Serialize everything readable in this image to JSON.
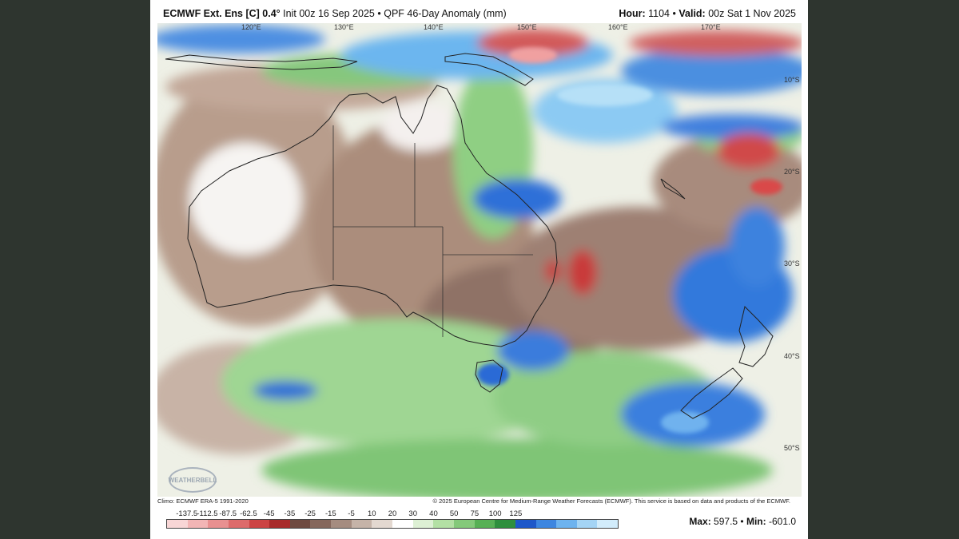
{
  "header": {
    "model_bold": "ECMWF Ext. Ens [C] 0.4°",
    "init_text": "Init 00z 16 Sep 2025",
    "product_text": "QPF 46-Day Anomaly (mm)",
    "hour_label": "Hour:",
    "hour_value": "1104",
    "valid_label": "Valid:",
    "valid_value": "00z Sat 1 Nov 2025",
    "separator": "•"
  },
  "map": {
    "lon_labels": [
      "120°E",
      "130°E",
      "140°E",
      "150°E",
      "160°E",
      "170°E"
    ],
    "lat_labels": [
      "10°S",
      "20°S",
      "30°S",
      "40°S",
      "50°S"
    ],
    "logo_text": "WEATHERBELL"
  },
  "footer": {
    "climo": "Climo: ECMWF ERA-5 1991-2020",
    "copyright": "© 2025 European Centre for Medium-Range Weather Forecasts (ECMWF). This service is based on data and products of the ECMWF.",
    "max_label": "Max:",
    "max_value": "597.5",
    "min_label": "Min:",
    "min_value": "-601.0"
  },
  "colorbar": {
    "ticks": [
      "-137.5",
      "-112.5",
      "-87.5",
      "-62.5",
      "-45",
      "-35",
      "-25",
      "-15",
      "-5",
      "10",
      "20",
      "30",
      "40",
      "50",
      "75",
      "100",
      "125"
    ],
    "colors": [
      "#f8d6d6",
      "#f2b5b5",
      "#e89090",
      "#dd6b6b",
      "#cc4444",
      "#a82a2a",
      "#6e4a40",
      "#85675c",
      "#a58c80",
      "#c5b3a8",
      "#e3d8d0",
      "#ffffff",
      "#ddf0d4",
      "#b3e0a4",
      "#84c97a",
      "#57b055",
      "#2e8f3d",
      "#1d57c9",
      "#3d86e0",
      "#6db3ef",
      "#a4d4f5",
      "#d2ecfb"
    ]
  }
}
